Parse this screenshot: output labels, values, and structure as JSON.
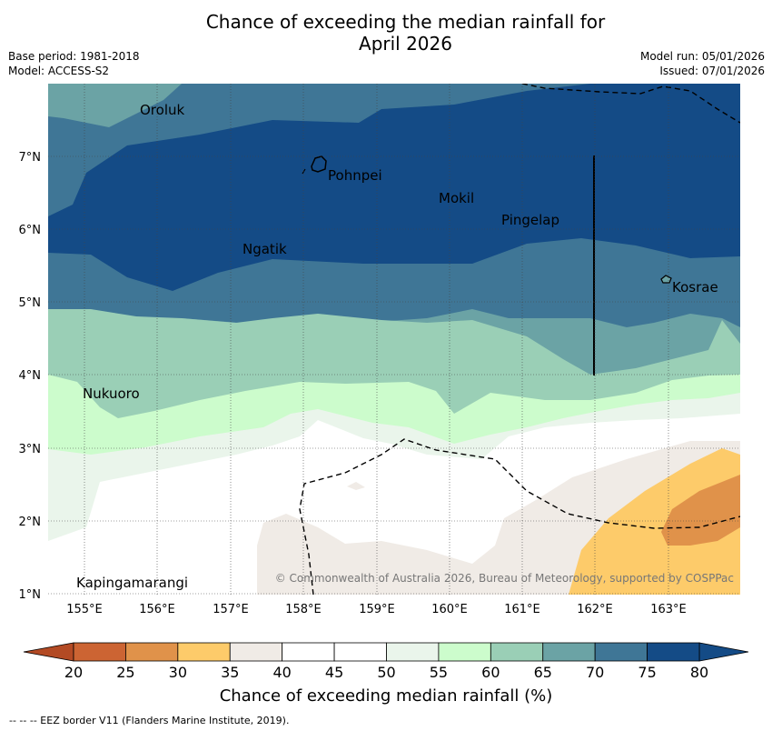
{
  "title": {
    "line1": "Chance of exceeding the median rainfall for",
    "line2": "April 2026"
  },
  "meta": {
    "base_period": "Base period: 1981-2018",
    "model": "Model: ACCESS-S2",
    "model_run": "Model run: 05/01/2026",
    "issued": "Issued: 07/01/2026"
  },
  "map": {
    "lat_labels": [
      "7°N",
      "6°N",
      "5°N",
      "4°N",
      "3°N",
      "2°N",
      "1°N"
    ],
    "lon_labels": [
      "155°E",
      "156°E",
      "157°E",
      "158°E",
      "159°E",
      "160°E",
      "161°E",
      "162°E",
      "163°E"
    ],
    "places": [
      "Oroluk",
      "Pohnpei",
      "Mokil",
      "Pingelap",
      "Ngatik",
      "Kosrae",
      "Nukuoro",
      "Kapingamarangi"
    ],
    "copyright": "© Commonwealth of Australia 2026, Bureau of Meteorology, supported by COSPPac"
  },
  "colorbar": {
    "ticks": [
      "20",
      "25",
      "30",
      "35",
      "40",
      "45",
      "50",
      "55",
      "60",
      "65",
      "70",
      "75",
      "80"
    ],
    "colors": [
      "#b34a24",
      "#cc6433",
      "#e0924a",
      "#fdcb6a",
      "#f0ebe6",
      "#ffffff",
      "#ffffff",
      "#eaf5eb",
      "#ccfccc",
      "#9acfb6",
      "#6ba3a5",
      "#3f7696",
      "#144b86"
    ],
    "label": "Chance of exceeding median rainfall (%)"
  },
  "footnote": "--  --  -- EEZ border V11 (Flanders Marine Institute, 2019)."
}
